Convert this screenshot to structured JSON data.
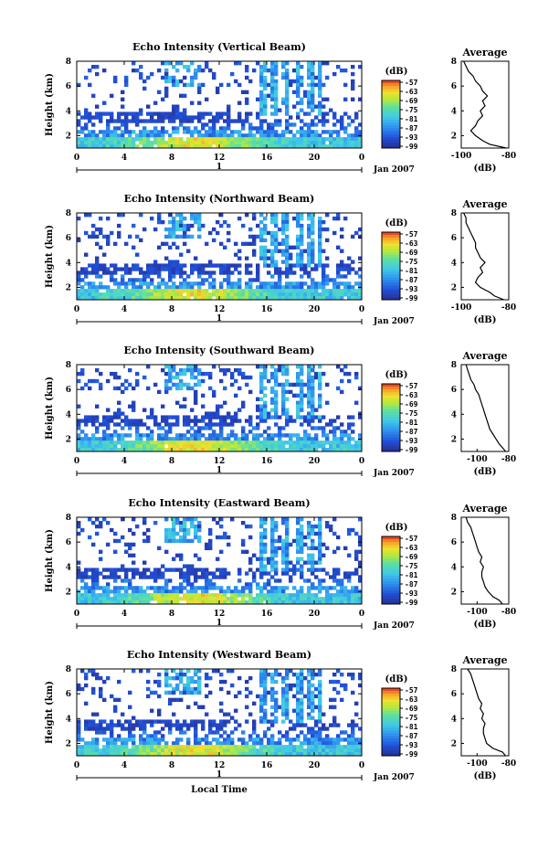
{
  "figure": {
    "time_axis_label": "Local Time",
    "date_label": "Jan 2007",
    "day_marker": "1",
    "colorbar_title": "(dB)",
    "avg_title": "Average",
    "avg_xlabel": "(dB)"
  },
  "chart_data": [
    {
      "type": "heatmap",
      "title": "Echo Intensity (Vertical Beam)",
      "xlabel": "",
      "ylabel": "Height (km)",
      "xticks": [
        "0",
        "4",
        "8",
        "12",
        "16",
        "20",
        "0"
      ],
      "yticks": [
        "2",
        "4",
        "6",
        "8"
      ],
      "xlim": [
        0,
        24
      ],
      "ylim": [
        1,
        8
      ],
      "colorbar": {
        "label": "(dB)",
        "ticks": [
          "-57",
          "-63",
          "-69",
          "-75",
          "-81",
          "-87",
          "-93",
          "-99"
        ],
        "range": [
          -99,
          -57
        ]
      },
      "average_profile": {
        "title": "Average",
        "xlabel": "(dB)",
        "xticks": [
          "-100",
          "-80"
        ],
        "yticks": [
          "2",
          "4",
          "6",
          "8"
        ],
        "xlim": [
          -100,
          -80
        ],
        "height": [
          1.0,
          1.3,
          1.6,
          2.0,
          2.4,
          2.8,
          3.2,
          3.6,
          4.0,
          4.4,
          4.8,
          5.2,
          5.6,
          6.0,
          6.4,
          6.8,
          7.2,
          7.6,
          8.0
        ],
        "value": [
          -81,
          -88,
          -91,
          -94,
          -96,
          -94,
          -93,
          -91,
          -92,
          -90,
          -91,
          -89,
          -91,
          -92,
          -94,
          -95,
          -97,
          -98,
          -99
        ]
      }
    },
    {
      "type": "heatmap",
      "title": "Echo Intensity (Northward Beam)",
      "xlabel": "",
      "ylabel": "Height (km)",
      "xticks": [
        "0",
        "4",
        "8",
        "12",
        "16",
        "20",
        "0"
      ],
      "yticks": [
        "2",
        "4",
        "6",
        "8"
      ],
      "xlim": [
        0,
        24
      ],
      "ylim": [
        1,
        8
      ],
      "colorbar": {
        "label": "(dB)",
        "ticks": [
          "-57",
          "-63",
          "-69",
          "-75",
          "-81",
          "-87",
          "-93",
          "-99"
        ],
        "range": [
          -99,
          -57
        ]
      },
      "average_profile": {
        "title": "Average",
        "xlabel": "(dB)",
        "xticks": [
          "-100",
          "-80"
        ],
        "yticks": [
          "2",
          "4",
          "6",
          "8"
        ],
        "xlim": [
          -100,
          -80
        ],
        "height": [
          1.0,
          1.3,
          1.6,
          2.0,
          2.4,
          2.8,
          3.2,
          3.6,
          4.0,
          4.4,
          4.8,
          5.2,
          5.6,
          6.0,
          6.4,
          6.8,
          7.2,
          7.6,
          8.0
        ],
        "value": [
          -82,
          -86,
          -88,
          -92,
          -94,
          -93,
          -91,
          -92,
          -90,
          -92,
          -93,
          -94,
          -94,
          -95,
          -96,
          -97,
          -98,
          -98,
          -99
        ]
      }
    },
    {
      "type": "heatmap",
      "title": "Echo Intensity (Southward Beam)",
      "xlabel": "",
      "ylabel": "Height (km)",
      "xticks": [
        "0",
        "4",
        "8",
        "12",
        "16",
        "20",
        "0"
      ],
      "yticks": [
        "2",
        "4",
        "6",
        "8"
      ],
      "xlim": [
        0,
        24
      ],
      "ylim": [
        1,
        8
      ],
      "colorbar": {
        "label": "(dB)",
        "ticks": [
          "-57",
          "-63",
          "-69",
          "-75",
          "-81",
          "-87",
          "-93",
          "-99"
        ],
        "range": [
          -99,
          -57
        ]
      },
      "average_profile": {
        "title": "Average",
        "xlabel": "(dB)",
        "xticks": [
          "-100",
          "-80"
        ],
        "yticks": [
          "2",
          "4",
          "6",
          "8"
        ],
        "xlim": [
          -110,
          -80
        ],
        "height": [
          1.0,
          1.3,
          1.6,
          2.0,
          2.4,
          2.8,
          3.2,
          3.6,
          4.0,
          4.4,
          4.8,
          5.2,
          5.6,
          6.0,
          6.4,
          6.8,
          7.2,
          7.6,
          8.0
        ],
        "value": [
          -82,
          -84,
          -86,
          -88,
          -90,
          -92,
          -93,
          -94,
          -95,
          -96,
          -97,
          -98,
          -99,
          -101,
          -102,
          -104,
          -105,
          -106,
          -107
        ]
      }
    },
    {
      "type": "heatmap",
      "title": "Echo Intensity (Eastward Beam)",
      "xlabel": "",
      "ylabel": "Height (km)",
      "xticks": [
        "0",
        "4",
        "8",
        "12",
        "16",
        "20",
        "0"
      ],
      "yticks": [
        "2",
        "4",
        "6",
        "8"
      ],
      "xlim": [
        0,
        24
      ],
      "ylim": [
        1,
        8
      ],
      "colorbar": {
        "label": "(dB)",
        "ticks": [
          "-57",
          "-63",
          "-69",
          "-75",
          "-81",
          "-87",
          "-93",
          "-99"
        ],
        "range": [
          -99,
          -57
        ]
      },
      "average_profile": {
        "title": "Average",
        "xlabel": "(dB)",
        "xticks": [
          "-100",
          "-80"
        ],
        "yticks": [
          "2",
          "4",
          "6",
          "8"
        ],
        "xlim": [
          -110,
          -80
        ],
        "height": [
          1.0,
          1.3,
          1.6,
          2.0,
          2.4,
          2.8,
          3.2,
          3.6,
          4.0,
          4.4,
          4.8,
          5.2,
          5.6,
          6.0,
          6.4,
          6.8,
          7.2,
          7.6,
          8.0
        ],
        "value": [
          -84,
          -86,
          -90,
          -93,
          -95,
          -96,
          -97,
          -97,
          -96,
          -98,
          -97,
          -99,
          -100,
          -101,
          -102,
          -103,
          -104,
          -106,
          -107
        ]
      }
    },
    {
      "type": "heatmap",
      "title": "Echo Intensity (Westward Beam)",
      "xlabel": "Local Time",
      "ylabel": "Height (km)",
      "xticks": [
        "0",
        "4",
        "8",
        "12",
        "16",
        "20",
        "0"
      ],
      "yticks": [
        "2",
        "4",
        "6",
        "8"
      ],
      "xlim": [
        0,
        24
      ],
      "ylim": [
        1,
        8
      ],
      "colorbar": {
        "label": "(dB)",
        "ticks": [
          "-57",
          "-63",
          "-69",
          "-75",
          "-81",
          "-87",
          "-93",
          "-99"
        ],
        "range": [
          -99,
          -57
        ]
      },
      "average_profile": {
        "title": "Average",
        "xlabel": "(dB)",
        "xticks": [
          "-100",
          "-80"
        ],
        "yticks": [
          "2",
          "4",
          "6",
          "8"
        ],
        "xlim": [
          -110,
          -80
        ],
        "height": [
          1.0,
          1.3,
          1.6,
          2.0,
          2.4,
          2.8,
          3.2,
          3.6,
          4.0,
          4.4,
          4.8,
          5.2,
          5.6,
          6.0,
          6.4,
          6.8,
          7.2,
          7.6,
          8.0
        ],
        "value": [
          -82,
          -84,
          -90,
          -94,
          -95,
          -96,
          -96,
          -95,
          -97,
          -96,
          -98,
          -97,
          -99,
          -100,
          -101,
          -102,
          -103,
          -104,
          -106
        ]
      }
    }
  ]
}
